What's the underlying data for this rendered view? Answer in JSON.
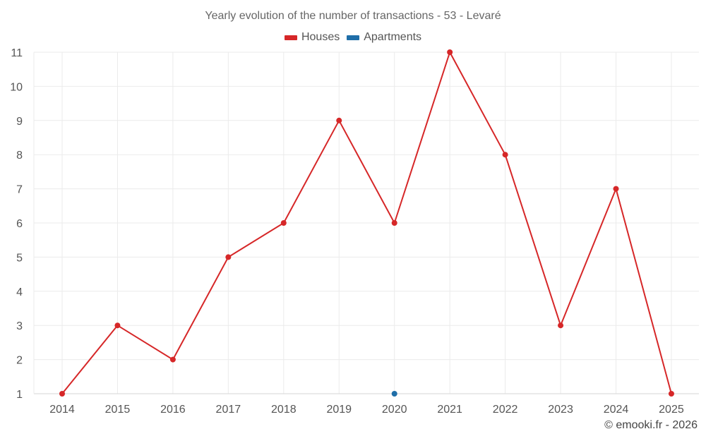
{
  "chart_data": {
    "type": "line",
    "title": "Yearly evolution of the number of transactions - 53 - Levaré",
    "categories": [
      "2014",
      "2015",
      "2016",
      "2017",
      "2018",
      "2019",
      "2020",
      "2021",
      "2022",
      "2023",
      "2024",
      "2025"
    ],
    "series": [
      {
        "name": "Houses",
        "color": "#d62728",
        "values": [
          1,
          3,
          2,
          5,
          6,
          9,
          6,
          11,
          8,
          3,
          7,
          1
        ]
      },
      {
        "name": "Apartments",
        "color": "#1f6ea8",
        "values": [
          null,
          null,
          null,
          null,
          null,
          null,
          1,
          null,
          null,
          null,
          null,
          null
        ]
      }
    ],
    "xlabel": "",
    "ylabel": "",
    "ylim": [
      1,
      11
    ],
    "yticks": [
      1,
      2,
      3,
      4,
      5,
      6,
      7,
      8,
      9,
      10,
      11
    ],
    "grid": true,
    "legend_position": "top-center"
  },
  "credit": "© emooki.fr - 2026"
}
